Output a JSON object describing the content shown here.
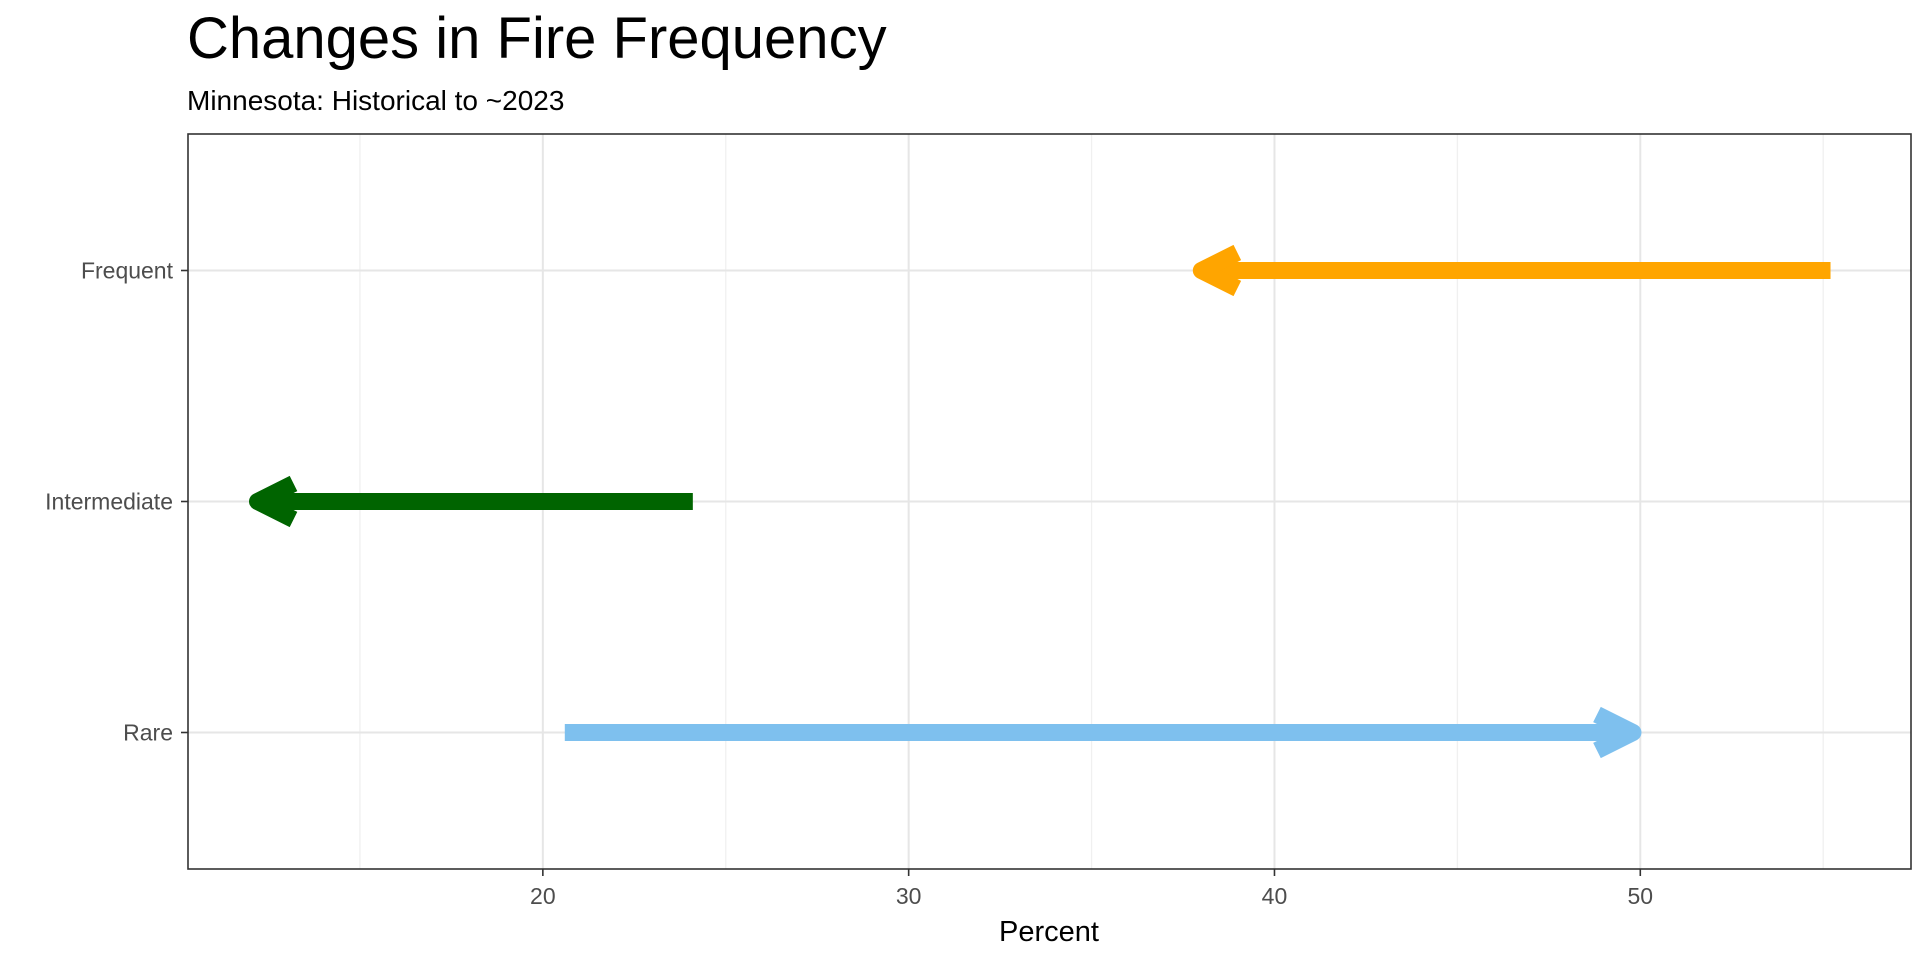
{
  "chart_data": {
    "type": "arrow",
    "title": "Changes in Fire Frequency",
    "subtitle": "Minnesota: Historical to ~2023",
    "xlabel": "Percent",
    "ylabel": "",
    "xlim": [
      10.3,
      57.4
    ],
    "x_major_ticks": [
      20,
      30,
      40,
      50
    ],
    "x_minor_ticks": [
      15,
      25,
      35,
      45,
      55
    ],
    "categories": [
      "Frequent",
      "Intermediate",
      "Rare"
    ],
    "grid": true,
    "series": [
      {
        "category": "Frequent",
        "from": 55.2,
        "to": 38.0,
        "color": "#FFA500"
      },
      {
        "category": "Intermediate",
        "from": 24.1,
        "to": 12.2,
        "color": "#006400"
      },
      {
        "category": "Rare",
        "from": 20.6,
        "to": 49.8,
        "color": "#7EC0EE"
      }
    ]
  }
}
